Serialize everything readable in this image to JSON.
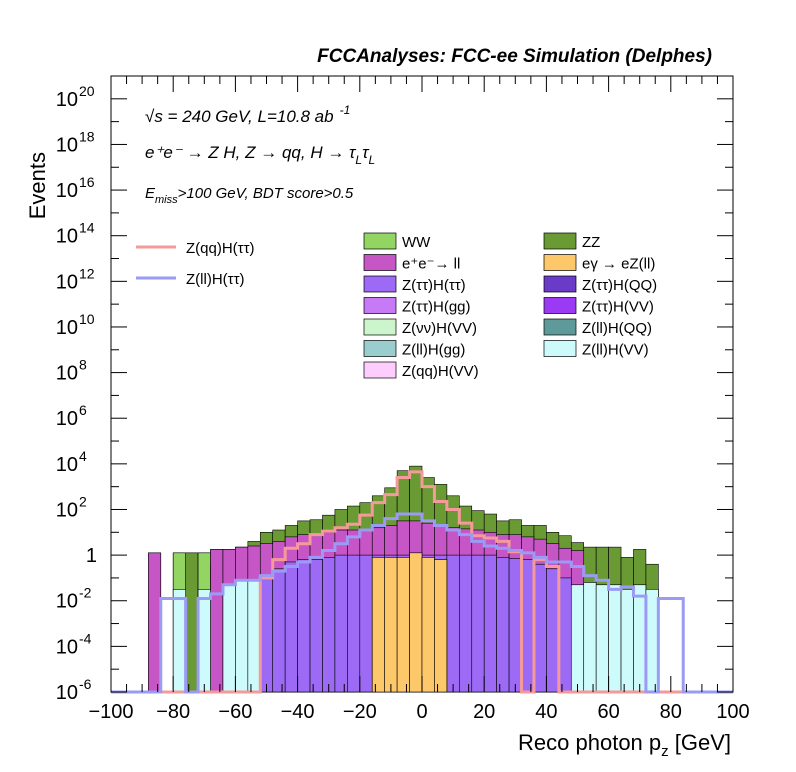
{
  "chart_data": {
    "type": "bar",
    "title": "FCCAnalyses: FCC-ee Simulation (Delphes)",
    "xlabel_main": "Reco photon p",
    "xlabel_sub": "z",
    "xlabel_unit": " [GeV]",
    "ylabel": "Events",
    "xlim": [
      -100,
      100
    ],
    "ylim_log10": [
      -6,
      21
    ],
    "log_y": true,
    "bin_width": 4,
    "x_ticks": [
      "−100",
      "−80",
      "−60",
      "−40",
      "−20",
      "0",
      "20",
      "40",
      "60",
      "80",
      "100"
    ],
    "y_tick_labels": [
      {
        "base": "10",
        "exp": "20"
      },
      {
        "base": "10",
        "exp": "18"
      },
      {
        "base": "10",
        "exp": "16"
      },
      {
        "base": "10",
        "exp": "14"
      },
      {
        "base": "10",
        "exp": "12"
      },
      {
        "base": "10",
        "exp": "10"
      },
      {
        "base": "10",
        "exp": "8"
      },
      {
        "base": "10",
        "exp": "6"
      },
      {
        "base": "10",
        "exp": "4"
      },
      {
        "base": "10",
        "exp": "2"
      },
      {
        "base": "1",
        "exp": ""
      },
      {
        "base": "10",
        "exp": "-2"
      },
      {
        "base": "10",
        "exp": "-4"
      },
      {
        "base": "10",
        "exp": "-6"
      }
    ],
    "annotations": {
      "energy": "√s = 240 GeV, L=10.8 ab",
      "energy_exp": "-1",
      "process": "e⁺e⁻ → Z H, Z → qq, H → τ",
      "process_sub1": "L",
      "process_mid": "τ",
      "process_sub2": "L",
      "cut_main": "E",
      "cut_sub": "miss",
      "cut_rest": ">100 GeV, BDT score>0.5"
    },
    "legend_position": "top",
    "signal_legend": [
      {
        "name": "Z(qq)H(ττ)",
        "color": "#f59a9a"
      },
      {
        "name": "Z(ll)H(ττ)",
        "color": "#9b9bf5"
      }
    ],
    "background_legend": [
      {
        "name": "WW",
        "color": "#92d563"
      },
      {
        "name": "ZZ",
        "color": "#6a9a34"
      },
      {
        "name": "e⁺e⁻→ ll",
        "color": "#c655c6"
      },
      {
        "name": "eγ → eZ(ll)",
        "color": "#fdc86a"
      },
      {
        "name": "Z(ττ)H(ττ)",
        "color": "#9c6af5"
      },
      {
        "name": "Z(ττ)H(QQ)",
        "color": "#6a3ac9"
      },
      {
        "name": "Z(ττ)H(gg)",
        "color": "#c67af5"
      },
      {
        "name": "Z(ττ)H(VV)",
        "color": "#9a3af5"
      },
      {
        "name": "Z(νν)H(VV)",
        "color": "#cdf5cd"
      },
      {
        "name": "Z(ll)H(QQ)",
        "color": "#5f9a9a"
      },
      {
        "name": "Z(ll)H(gg)",
        "color": "#9acdcd"
      },
      {
        "name": "Z(ll)H(VV)",
        "color": "#cdfafa"
      },
      {
        "name": "Z(qq)H(VV)",
        "color": "#fdcdfd"
      }
    ],
    "stack_log10_bin_edges_left": [
      -88,
      -80,
      -76,
      -72,
      -68,
      -64,
      -60,
      -56,
      -52,
      -48,
      -44,
      -40,
      -36,
      -32,
      -28,
      -24,
      -20,
      -16,
      -12,
      -8,
      -4,
      0,
      4,
      8,
      12,
      16,
      20,
      24,
      28,
      32,
      36,
      40,
      44,
      48,
      52,
      56,
      60,
      64,
      68,
      72
    ],
    "stack_log10_totals": [
      0.1,
      0.1,
      0.1,
      0.1,
      0.25,
      0.25,
      0.35,
      0.6,
      1.0,
      1.1,
      1.3,
      1.5,
      1.55,
      1.75,
      2.0,
      2.15,
      2.3,
      2.6,
      2.95,
      3.7,
      3.9,
      3.4,
      3.1,
      2.6,
      2.15,
      1.95,
      1.8,
      1.5,
      1.55,
      1.3,
      1.3,
      1.0,
      0.85,
      0.55,
      0.35,
      0.35,
      0.35,
      -0.1,
      0.25,
      -0.4
    ],
    "stack_log10_ww": [
      -99,
      0.1,
      -99,
      0.1,
      -0.5,
      -1.0,
      -0.5,
      -0.6,
      -0.5,
      -0.5,
      -0.4,
      -0.6,
      -0.5,
      -0.7,
      -0.5,
      -0.6,
      -0.5,
      -0.7,
      -0.7,
      -0.6,
      -0.6,
      -0.7,
      -0.7,
      -0.6,
      -0.6,
      -0.6,
      -0.6,
      -0.7,
      -0.7,
      -1.0,
      -1.0,
      -1.2,
      -1.1,
      -1.3,
      -1.3,
      -1.6,
      -1.6,
      -99,
      -1.6,
      -99
    ],
    "stack_log10_ee": [
      0.1,
      -99,
      -99,
      -99,
      0.25,
      0.25,
      0.35,
      0.4,
      0.5,
      0.6,
      0.8,
      0.9,
      0.9,
      1.0,
      1.1,
      1.1,
      1.15,
      1.2,
      1.3,
      1.5,
      1.5,
      1.4,
      1.3,
      1.2,
      1.15,
      1.1,
      1.0,
      0.9,
      0.9,
      0.8,
      0.7,
      0.5,
      0.3,
      0.2,
      -99,
      -99,
      -99,
      -99,
      -99,
      -99
    ],
    "stack_log10_tautau": [
      -99,
      -99,
      -99,
      -99,
      -99,
      -99,
      -99,
      -99,
      -1.0,
      -0.6,
      -0.3,
      -0.2,
      -0.2,
      -0.1,
      0.0,
      0.0,
      0.0,
      0.0,
      0.0,
      0.0,
      0.0,
      0.0,
      0.0,
      0.0,
      0.0,
      0.0,
      0.0,
      -0.1,
      -0.15,
      -0.2,
      -0.4,
      -0.6,
      -1.0,
      -99,
      -99,
      -99,
      -99,
      -99,
      -99,
      -99
    ],
    "stack_log10_egamma": [
      -99,
      -99,
      -99,
      -99,
      -99,
      -99,
      -99,
      -99,
      -99,
      -99,
      -99,
      -99,
      -99,
      -99,
      -99,
      -99,
      -99,
      -0.1,
      -0.1,
      -0.1,
      0.1,
      -0.1,
      -0.2,
      -99,
      -99,
      -99,
      -99,
      -99,
      -99,
      -99,
      -99,
      -99,
      -99,
      -99,
      -99,
      -99,
      -99,
      -99,
      -99,
      -99
    ],
    "stack_log10_zllvv": [
      -99,
      -1.5,
      -99,
      -1.5,
      -99,
      -1.3,
      -1.1,
      -1.1,
      -99,
      -99,
      -99,
      -99,
      -99,
      -99,
      -99,
      -99,
      -99,
      -99,
      -99,
      -99,
      -99,
      -99,
      -99,
      -99,
      -99,
      -99,
      -99,
      -99,
      -99,
      -99,
      -99,
      -99,
      -99,
      -1.3,
      -1.2,
      -1.3,
      -1.3,
      -1.5,
      -1.3,
      -1.5
    ],
    "signal_zqq": {
      "x": [
        -100,
        -56,
        -52,
        -48,
        -44,
        -40,
        -36,
        -32,
        -28,
        -24,
        -20,
        -16,
        -12,
        -8,
        -4,
        0,
        4,
        8,
        12,
        16,
        20,
        24,
        28,
        32,
        36,
        40,
        44,
        48,
        52,
        100
      ],
      "log10": [
        -6,
        -6,
        -1.0,
        -0.2,
        0.3,
        0.5,
        0.9,
        1.05,
        1.2,
        1.35,
        1.75,
        2.3,
        2.65,
        3.4,
        3.65,
        3.0,
        2.35,
        2.0,
        1.4,
        0.85,
        0.75,
        0.6,
        0.15,
        -6,
        -0.2,
        -0.5,
        -6,
        -6,
        -6,
        -6
      ]
    },
    "signal_zll": {
      "x": [
        -100,
        -84,
        -80,
        -76,
        -72,
        -68,
        -64,
        -60,
        -56,
        -52,
        -48,
        -44,
        -40,
        -36,
        -32,
        -28,
        -24,
        -20,
        -16,
        -12,
        -8,
        -4,
        0,
        4,
        8,
        12,
        16,
        20,
        24,
        28,
        32,
        36,
        40,
        44,
        48,
        52,
        56,
        60,
        64,
        68,
        72,
        76,
        80,
        84,
        100
      ],
      "log10": [
        -6,
        -1.9,
        -1.9,
        -6,
        -1.9,
        -1.7,
        -1.3,
        -1.1,
        -1.1,
        -0.9,
        -0.7,
        -0.5,
        -0.3,
        -0.1,
        0.2,
        0.5,
        0.8,
        1.1,
        1.3,
        1.6,
        1.8,
        1.8,
        1.5,
        1.3,
        1.1,
        0.9,
        0.6,
        0.4,
        0.3,
        0.2,
        0.1,
        -0.1,
        -0.3,
        -0.3,
        -0.5,
        -0.9,
        -1.1,
        -1.5,
        -1.4,
        -1.8,
        -6,
        -1.9,
        -1.9,
        -6,
        -6
      ]
    }
  }
}
